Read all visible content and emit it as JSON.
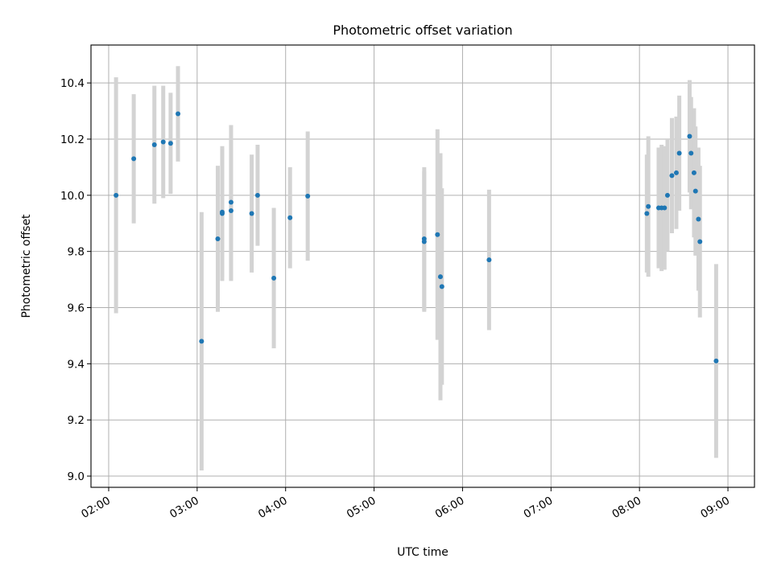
{
  "chart_data": {
    "type": "scatter",
    "title": "Photometric offset variation",
    "xlabel": "UTC time",
    "ylabel": "Photometric offset",
    "x_unit": "UTC",
    "xlim": [
      "01:48",
      "09:18"
    ],
    "ylim": [
      8.96,
      10.535
    ],
    "x_ticks": [
      "02:00",
      "03:00",
      "04:00",
      "05:00",
      "06:00",
      "07:00",
      "08:00",
      "09:00"
    ],
    "y_ticks": [
      "9.0",
      "9.2",
      "9.4",
      "9.6",
      "9.8",
      "10.0",
      "10.2",
      "10.4"
    ],
    "grid": true,
    "colors": {
      "point": "#1f77b4",
      "errorbar": "#d3d3d3",
      "grid": "#b0b0b0"
    },
    "points": [
      {
        "x": "02:05",
        "y": 10.0,
        "err": 0.42
      },
      {
        "x": "02:17",
        "y": 10.13,
        "err": 0.23
      },
      {
        "x": "02:31",
        "y": 10.18,
        "err": 0.21
      },
      {
        "x": "02:37",
        "y": 10.19,
        "err": 0.2
      },
      {
        "x": "02:42",
        "y": 10.185,
        "err": 0.18
      },
      {
        "x": "02:47",
        "y": 10.29,
        "err": 0.17
      },
      {
        "x": "03:03",
        "y": 9.48,
        "err": 0.46
      },
      {
        "x": "03:14",
        "y": 9.845,
        "err": 0.26
      },
      {
        "x": "03:17",
        "y": 9.94,
        "err": 0.23
      },
      {
        "x": "03:17",
        "y": 9.935,
        "err": 0.24
      },
      {
        "x": "03:23",
        "y": 9.975,
        "err": 0.275
      },
      {
        "x": "03:23",
        "y": 9.945,
        "err": 0.25
      },
      {
        "x": "03:37",
        "y": 9.935,
        "err": 0.21
      },
      {
        "x": "03:41",
        "y": 10.0,
        "err": 0.18
      },
      {
        "x": "03:52",
        "y": 9.705,
        "err": 0.25
      },
      {
        "x": "04:03",
        "y": 9.92,
        "err": 0.18
      },
      {
        "x": "04:15",
        "y": 9.997,
        "err": 0.23
      },
      {
        "x": "05:34",
        "y": 9.845,
        "err": 0.255
      },
      {
        "x": "05:34",
        "y": 9.835,
        "err": 0.25
      },
      {
        "x": "05:43",
        "y": 9.86,
        "err": 0.375
      },
      {
        "x": "05:45",
        "y": 9.71,
        "err": 0.44
      },
      {
        "x": "05:46",
        "y": 9.675,
        "err": 0.35
      },
      {
        "x": "06:18",
        "y": 9.77,
        "err": 0.25
      },
      {
        "x": "08:05",
        "y": 9.935,
        "err": 0.21
      },
      {
        "x": "08:06",
        "y": 9.96,
        "err": 0.25
      },
      {
        "x": "08:13",
        "y": 9.955,
        "err": 0.215
      },
      {
        "x": "08:15",
        "y": 9.955,
        "err": 0.225
      },
      {
        "x": "08:17",
        "y": 9.955,
        "err": 0.22
      },
      {
        "x": "08:19",
        "y": 10.0,
        "err": 0.2
      },
      {
        "x": "08:22",
        "y": 10.07,
        "err": 0.205
      },
      {
        "x": "08:25",
        "y": 10.08,
        "err": 0.2
      },
      {
        "x": "08:27",
        "y": 10.15,
        "err": 0.205
      },
      {
        "x": "08:34",
        "y": 10.21,
        "err": 0.2
      },
      {
        "x": "08:35",
        "y": 10.15,
        "err": 0.2
      },
      {
        "x": "08:37",
        "y": 10.08,
        "err": 0.23
      },
      {
        "x": "08:38",
        "y": 10.015,
        "err": 0.23
      },
      {
        "x": "08:40",
        "y": 9.915,
        "err": 0.255
      },
      {
        "x": "08:41",
        "y": 9.835,
        "err": 0.27
      },
      {
        "x": "08:52",
        "y": 9.41,
        "err": 0.345
      }
    ]
  }
}
